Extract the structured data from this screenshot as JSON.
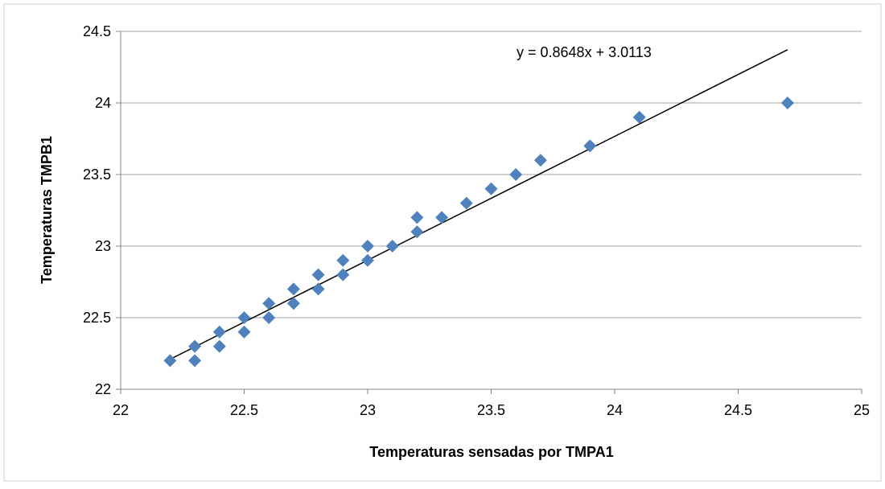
{
  "chart_data": {
    "type": "scatter",
    "title": "",
    "xlabel": "Temperaturas sensadas por TMPA1",
    "ylabel": "Temperaturas TMPB1",
    "xlim": [
      22,
      25
    ],
    "ylim": [
      22,
      24.5
    ],
    "x_ticks": [
      "22",
      "22.5",
      "23",
      "23.5",
      "24",
      "24.5",
      "25"
    ],
    "y_ticks": [
      "22",
      "22.5",
      "23",
      "23.5",
      "24",
      "24.5"
    ],
    "grid": "horizontal",
    "legend": "none",
    "marker": "diamond",
    "colors": {
      "points": "#4f81bd",
      "trendline": "#000000",
      "grid": "#a6a6a6"
    },
    "points": [
      {
        "x": 22.2,
        "y": 22.2
      },
      {
        "x": 22.3,
        "y": 22.3
      },
      {
        "x": 22.3,
        "y": 22.2
      },
      {
        "x": 22.4,
        "y": 22.4
      },
      {
        "x": 22.4,
        "y": 22.3
      },
      {
        "x": 22.5,
        "y": 22.5
      },
      {
        "x": 22.5,
        "y": 22.4
      },
      {
        "x": 22.6,
        "y": 22.6
      },
      {
        "x": 22.6,
        "y": 22.5
      },
      {
        "x": 22.7,
        "y": 22.7
      },
      {
        "x": 22.7,
        "y": 22.6
      },
      {
        "x": 22.8,
        "y": 22.8
      },
      {
        "x": 22.8,
        "y": 22.7
      },
      {
        "x": 22.9,
        "y": 22.9
      },
      {
        "x": 22.9,
        "y": 22.8
      },
      {
        "x": 23.0,
        "y": 23.0
      },
      {
        "x": 23.0,
        "y": 22.9
      },
      {
        "x": 23.1,
        "y": 23.0
      },
      {
        "x": 23.2,
        "y": 23.2
      },
      {
        "x": 23.2,
        "y": 23.1
      },
      {
        "x": 23.3,
        "y": 23.2
      },
      {
        "x": 23.4,
        "y": 23.3
      },
      {
        "x": 23.5,
        "y": 23.4
      },
      {
        "x": 23.6,
        "y": 23.5
      },
      {
        "x": 23.7,
        "y": 23.6
      },
      {
        "x": 23.9,
        "y": 23.7
      },
      {
        "x": 24.1,
        "y": 23.9
      },
      {
        "x": 24.7,
        "y": 24.0
      }
    ],
    "trendline": {
      "equation": "y = 0.8648x + 3.0113",
      "slope": 0.8648,
      "intercept": 3.0113,
      "x_range": [
        22.2,
        24.7
      ]
    }
  }
}
